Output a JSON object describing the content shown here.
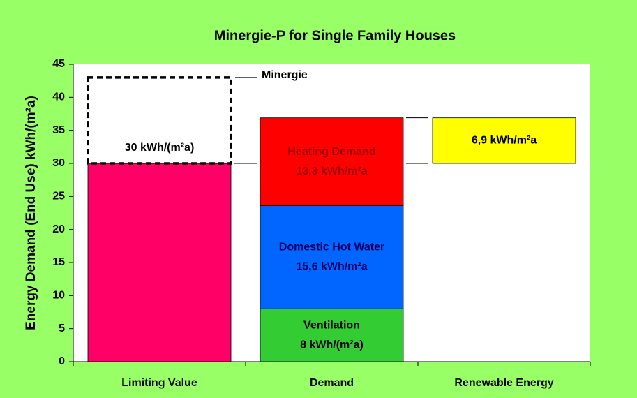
{
  "chart_data": {
    "type": "stacked-bar",
    "title": "Minergie-P for Single Family Houses",
    "y_label": "Energy Demand (End Use) kWh/(m²a)",
    "ylim": [
      0,
      45
    ],
    "yticks": [
      0,
      5,
      10,
      15,
      20,
      25,
      30,
      35,
      40,
      45
    ],
    "categories": [
      "Limiting Value",
      "Demand",
      "Renewable Energy"
    ],
    "stacks": [
      {
        "segments": [
          {
            "value": 30,
            "color": "#ff0066",
            "value_label": "30 kWh/(m²a)",
            "label_color": "#000000"
          },
          {
            "name": "Minergie",
            "value": 13,
            "style": "dashed"
          }
        ]
      },
      {
        "segments": [
          {
            "name": "Ventilation",
            "value": 8,
            "color": "#33cc33",
            "value_label": "8 kWh/(m²a)",
            "label_color": "#000000"
          },
          {
            "name": "Domestic Hot Water",
            "value": 15.6,
            "color": "#0066ff",
            "value_label": "15,6 kWh/m²a",
            "label_color": "#000066"
          },
          {
            "name": "Heating Demand",
            "value": 13.3,
            "color": "#ff0000",
            "value_label": "13,3 kWh/m²a",
            "label_color": "#990000"
          }
        ]
      },
      {
        "base": 30,
        "segments": [
          {
            "value": 6.9,
            "color": "#ffff00",
            "value_label": "6,9 kWh/m²a",
            "label_color": "#000000"
          }
        ]
      }
    ]
  }
}
